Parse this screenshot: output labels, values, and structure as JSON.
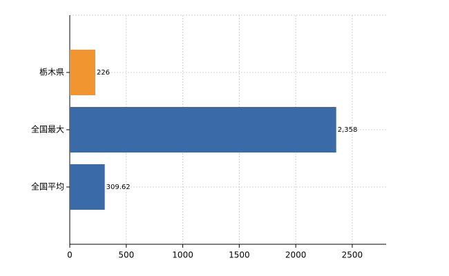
{
  "chart_data": {
    "type": "bar",
    "orientation": "horizontal",
    "categories": [
      "栃木県",
      "全国最大",
      "全国平均"
    ],
    "values": [
      226,
      2358,
      309.62
    ],
    "value_labels": [
      "226",
      "2,358",
      "309.62"
    ],
    "colors": [
      "#f0952f",
      "#3a6aa8",
      "#3a6aa8"
    ],
    "xlim": [
      0,
      2800
    ],
    "xticks": [
      0,
      500,
      1000,
      1500,
      2000,
      2500
    ],
    "grid": true
  }
}
